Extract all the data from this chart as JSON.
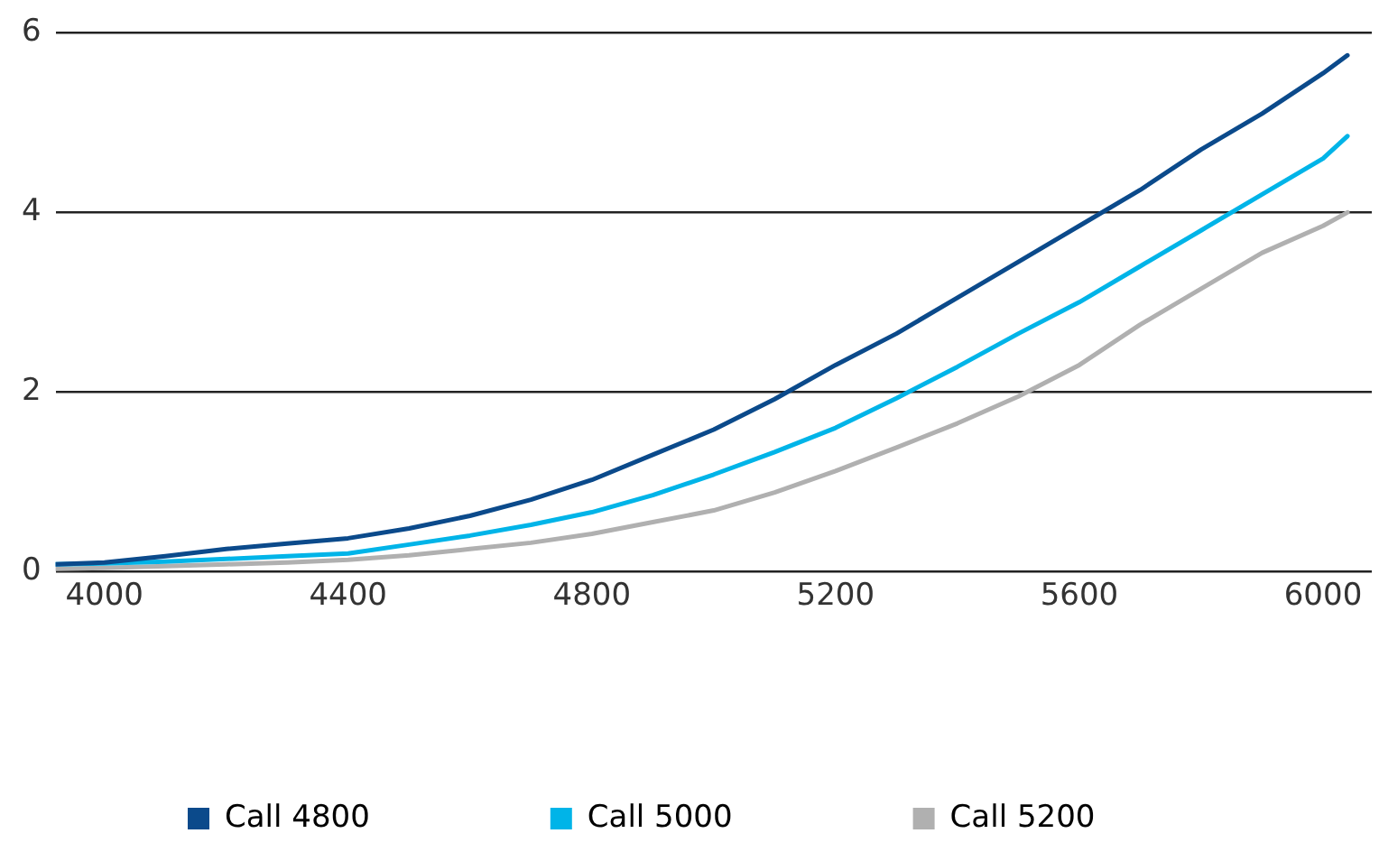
{
  "chart_data": {
    "type": "line",
    "x": [
      3920,
      4000,
      4100,
      4200,
      4300,
      4400,
      4500,
      4600,
      4700,
      4800,
      4900,
      5000,
      5100,
      5200,
      5300,
      5400,
      5500,
      5600,
      5700,
      5800,
      5900,
      6000,
      6040
    ],
    "series": [
      {
        "name": "Call 4800",
        "color": "#0b4a8b",
        "values": [
          0.08,
          0.1,
          0.17,
          0.25,
          0.31,
          0.37,
          0.48,
          0.62,
          0.8,
          1.02,
          1.3,
          1.58,
          1.92,
          2.3,
          2.65,
          3.05,
          3.45,
          3.85,
          4.25,
          4.7,
          5.1,
          5.55,
          5.75
        ]
      },
      {
        "name": "Call 5000",
        "color": "#00b4e8",
        "values": [
          0.08,
          0.09,
          0.11,
          0.14,
          0.17,
          0.2,
          0.3,
          0.4,
          0.52,
          0.66,
          0.85,
          1.08,
          1.33,
          1.6,
          1.93,
          2.28,
          2.65,
          3.0,
          3.4,
          3.8,
          4.2,
          4.6,
          4.85
        ]
      },
      {
        "name": "Call 5200",
        "color": "#b0b0b0",
        "values": [
          0.03,
          0.04,
          0.06,
          0.08,
          0.1,
          0.13,
          0.18,
          0.25,
          0.32,
          0.42,
          0.55,
          0.68,
          0.88,
          1.12,
          1.38,
          1.65,
          1.95,
          2.3,
          2.75,
          3.15,
          3.55,
          3.85,
          4.0
        ]
      }
    ],
    "xlim": [
      3920,
      6080
    ],
    "xticks": [
      4000,
      4400,
      4800,
      5200,
      5600,
      6000
    ],
    "ylim": [
      0,
      6
    ],
    "yticks": [
      0,
      2,
      4,
      6
    ],
    "grid": "y",
    "legend": "bottom left",
    "marker": "none",
    "line_style": "solid"
  }
}
